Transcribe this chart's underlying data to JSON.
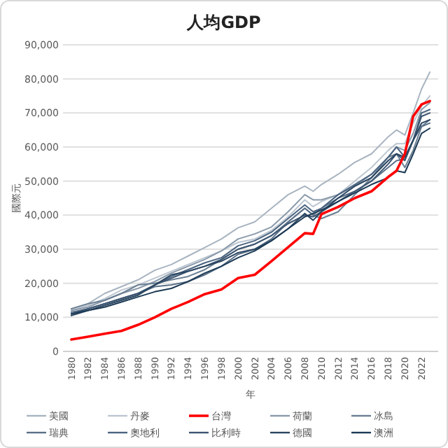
{
  "chart_data": {
    "type": "line",
    "title": "人均GDP",
    "xlabel": "年",
    "ylabel": "國際元",
    "x": [
      1980,
      1982,
      1984,
      1986,
      1988,
      1990,
      1992,
      1994,
      1996,
      1998,
      2000,
      2002,
      2004,
      2006,
      2008,
      2009,
      2010,
      2012,
      2014,
      2016,
      2018,
      2019,
      2020,
      2021,
      2022,
      2023
    ],
    "xlim": [
      1979,
      2024
    ],
    "xticks": [
      1980,
      1982,
      1984,
      1986,
      1988,
      1990,
      1992,
      1994,
      1996,
      1998,
      2000,
      2002,
      2004,
      2006,
      2008,
      2010,
      2012,
      2014,
      2016,
      2018,
      2020,
      2022
    ],
    "ylim": [
      0,
      90000
    ],
    "yticks": [
      0,
      {
        "value": 10000,
        "label": "10,000"
      },
      {
        "value": 20000,
        "label": "20,000"
      },
      {
        "value": 30000,
        "label": "30,000"
      },
      {
        "value": 40000,
        "label": "40,000"
      },
      {
        "value": 50000,
        "label": "50,000"
      },
      {
        "value": 60000,
        "label": "60,000"
      },
      {
        "value": 70000,
        "label": "70,000"
      },
      {
        "value": 80000,
        "label": "80,000"
      },
      {
        "value": 90000,
        "label": "90,000"
      }
    ],
    "grid": "y",
    "legend": "bottom",
    "series": [
      {
        "name": "美國",
        "color": "#a8b4c0",
        "values": [
          12500,
          14000,
          17000,
          19000,
          21000,
          23800,
          25500,
          28000,
          30500,
          33000,
          36300,
          38000,
          42000,
          46000,
          48500,
          47000,
          49000,
          52000,
          55500,
          58000,
          63000,
          65000,
          63500,
          70000,
          77000,
          82000
        ]
      },
      {
        "name": "丹麥",
        "color": "#bcc6d0",
        "values": [
          12000,
          13500,
          15500,
          18000,
          19500,
          21500,
          23500,
          25500,
          27500,
          29500,
          32000,
          33000,
          35500,
          39500,
          44500,
          42500,
          44000,
          46000,
          50000,
          54000,
          59000,
          61000,
          61000,
          67000,
          72000,
          75000
        ]
      },
      {
        "name": "台灣",
        "color": "#ff0000",
        "values": [
          3500,
          4300,
          5200,
          6000,
          7800,
          10000,
          12500,
          14500,
          16800,
          18200,
          21500,
          22500,
          26500,
          30600,
          34700,
          34500,
          40300,
          42400,
          45000,
          47000,
          51200,
          53000,
          58000,
          69000,
          72500,
          73500
        ]
      },
      {
        "name": "荷蘭",
        "color": "#8a9aab",
        "values": [
          12000,
          13000,
          15000,
          17000,
          18500,
          20500,
          23000,
          25000,
          27000,
          29500,
          33000,
          34500,
          36500,
          41000,
          46000,
          44500,
          44500,
          46000,
          48500,
          52000,
          57000,
          60000,
          59000,
          64000,
          71000,
          73000
        ]
      },
      {
        "name": "冰島",
        "color": "#6b7f93",
        "values": [
          12500,
          14000,
          15000,
          17000,
          19500,
          20000,
          21000,
          22000,
          24000,
          27000,
          30000,
          31500,
          34000,
          38000,
          42000,
          40000,
          39000,
          41000,
          46000,
          51000,
          57000,
          58000,
          54000,
          59000,
          66000,
          68000
        ]
      },
      {
        "name": "瑞典",
        "color": "#5a7088",
        "values": [
          11500,
          12500,
          14000,
          15500,
          17000,
          19000,
          19500,
          20500,
          22500,
          25000,
          28500,
          30000,
          33000,
          38000,
          42000,
          40000,
          42000,
          45000,
          47000,
          50000,
          54000,
          56000,
          56500,
          62000,
          66000,
          67000
        ]
      },
      {
        "name": "奧地利",
        "color": "#4a6480",
        "values": [
          11000,
          12500,
          14000,
          15500,
          17000,
          19500,
          22000,
          24000,
          26000,
          27500,
          31000,
          32500,
          35000,
          39000,
          43000,
          41000,
          42000,
          46000,
          49000,
          52000,
          57000,
          60000,
          57000,
          62000,
          70000,
          71000
        ]
      },
      {
        "name": "比利時",
        "color": "#3b5470",
        "values": [
          11000,
          12500,
          14000,
          15500,
          17000,
          19500,
          21500,
          23500,
          25000,
          27000,
          30000,
          31500,
          34000,
          37500,
          40000,
          39500,
          41000,
          44000,
          47000,
          50000,
          55000,
          58000,
          56000,
          62000,
          69000,
          70000
        ]
      },
      {
        "name": "德國",
        "color": "#2a4560",
        "values": [
          10500,
          12000,
          13500,
          15000,
          16500,
          19500,
          22500,
          23500,
          25000,
          26500,
          29000,
          30000,
          32500,
          36000,
          40500,
          38500,
          41000,
          45000,
          48500,
          51000,
          56000,
          58000,
          57000,
          62000,
          67000,
          68000
        ]
      },
      {
        "name": "澳洲",
        "color": "#1c3a55",
        "values": [
          11000,
          12000,
          13000,
          14500,
          16000,
          17500,
          18500,
          20500,
          23000,
          25000,
          27500,
          29500,
          32500,
          36000,
          39500,
          40500,
          41500,
          44000,
          46500,
          49000,
          51000,
          53000,
          52500,
          58000,
          64000,
          65500
        ]
      }
    ]
  }
}
